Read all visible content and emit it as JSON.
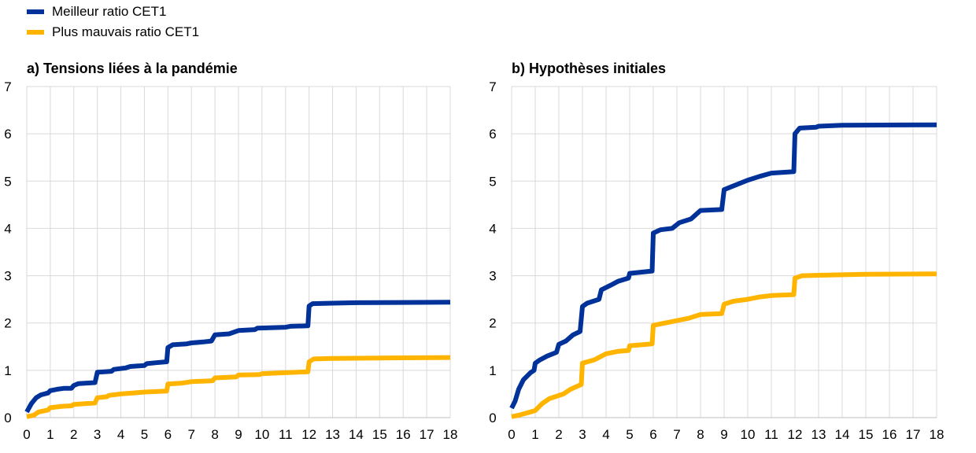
{
  "legend": {
    "items": [
      {
        "label": "Meilleur ratio CET1",
        "color": "#003299"
      },
      {
        "label": "Plus mauvais ratio CET1",
        "color": "#FFB400"
      }
    ]
  },
  "chart_data": [
    {
      "type": "line",
      "title": "a) Tensions liées à la pandémie",
      "xlabel": "",
      "ylabel": "",
      "xlim": [
        0,
        18
      ],
      "ylim": [
        0,
        7
      ],
      "xticks": [
        0,
        1,
        2,
        3,
        4,
        5,
        6,
        7,
        8,
        9,
        10,
        11,
        12,
        13,
        14,
        15,
        16,
        17,
        18
      ],
      "yticks": [
        0,
        1,
        2,
        3,
        4,
        5,
        6,
        7
      ],
      "grid": true,
      "series": [
        {
          "name": "Meilleur ratio CET1",
          "color": "#003299",
          "points": [
            [
              0,
              0.12
            ],
            [
              0.2,
              0.3
            ],
            [
              0.4,
              0.42
            ],
            [
              0.6,
              0.48
            ],
            [
              0.9,
              0.52
            ],
            [
              1,
              0.57
            ],
            [
              1.3,
              0.6
            ],
            [
              1.6,
              0.62
            ],
            [
              1.9,
              0.62
            ],
            [
              2,
              0.68
            ],
            [
              2.2,
              0.72
            ],
            [
              2.9,
              0.74
            ],
            [
              3,
              0.96
            ],
            [
              3.6,
              0.98
            ],
            [
              3.7,
              1.02
            ],
            [
              4.2,
              1.05
            ],
            [
              4.4,
              1.08
            ],
            [
              5,
              1.1
            ],
            [
              5.1,
              1.14
            ],
            [
              5.5,
              1.16
            ],
            [
              5.95,
              1.18
            ],
            [
              6,
              1.48
            ],
            [
              6.2,
              1.54
            ],
            [
              6.8,
              1.56
            ],
            [
              7,
              1.58
            ],
            [
              7.5,
              1.6
            ],
            [
              7.85,
              1.62
            ],
            [
              8,
              1.75
            ],
            [
              8.6,
              1.77
            ],
            [
              9,
              1.84
            ],
            [
              9.7,
              1.86
            ],
            [
              9.8,
              1.89
            ],
            [
              11,
              1.91
            ],
            [
              11.2,
              1.93
            ],
            [
              11.95,
              1.94
            ],
            [
              12,
              2.36
            ],
            [
              12.15,
              2.41
            ],
            [
              13,
              2.42
            ],
            [
              14,
              2.43
            ],
            [
              18,
              2.44
            ]
          ]
        },
        {
          "name": "Plus mauvais ratio CET1",
          "color": "#FFB400",
          "points": [
            [
              0,
              0.02
            ],
            [
              0.3,
              0.05
            ],
            [
              0.5,
              0.12
            ],
            [
              0.9,
              0.16
            ],
            [
              1,
              0.21
            ],
            [
              1.5,
              0.24
            ],
            [
              1.9,
              0.25
            ],
            [
              2,
              0.28
            ],
            [
              2.9,
              0.31
            ],
            [
              3,
              0.42
            ],
            [
              3.4,
              0.44
            ],
            [
              3.5,
              0.47
            ],
            [
              4,
              0.5
            ],
            [
              4.5,
              0.52
            ],
            [
              5,
              0.54
            ],
            [
              5.95,
              0.56
            ],
            [
              6,
              0.71
            ],
            [
              6.6,
              0.73
            ],
            [
              7,
              0.76
            ],
            [
              7.9,
              0.78
            ],
            [
              8,
              0.84
            ],
            [
              8.9,
              0.86
            ],
            [
              9,
              0.9
            ],
            [
              9.9,
              0.91
            ],
            [
              10,
              0.93
            ],
            [
              11,
              0.95
            ],
            [
              11.95,
              0.97
            ],
            [
              12,
              1.18
            ],
            [
              12.2,
              1.24
            ],
            [
              13,
              1.25
            ],
            [
              15,
              1.26
            ],
            [
              18,
              1.27
            ]
          ]
        }
      ]
    },
    {
      "type": "line",
      "title": "b) Hypothèses initiales",
      "xlabel": "",
      "ylabel": "",
      "xlim": [
        0,
        18
      ],
      "ylim": [
        0,
        7
      ],
      "xticks": [
        0,
        1,
        2,
        3,
        4,
        5,
        6,
        7,
        8,
        9,
        10,
        11,
        12,
        13,
        14,
        15,
        16,
        17,
        18
      ],
      "yticks": [
        0,
        1,
        2,
        3,
        4,
        5,
        6,
        7
      ],
      "grid": true,
      "series": [
        {
          "name": "Meilleur ratio CET1",
          "color": "#003299",
          "points": [
            [
              0,
              0.2
            ],
            [
              0.15,
              0.35
            ],
            [
              0.3,
              0.6
            ],
            [
              0.5,
              0.8
            ],
            [
              0.6,
              0.85
            ],
            [
              0.7,
              0.9
            ],
            [
              0.8,
              0.95
            ],
            [
              0.95,
              1.0
            ],
            [
              1,
              1.15
            ],
            [
              1.2,
              1.22
            ],
            [
              1.5,
              1.3
            ],
            [
              1.9,
              1.38
            ],
            [
              2,
              1.55
            ],
            [
              2.3,
              1.62
            ],
            [
              2.6,
              1.75
            ],
            [
              2.9,
              1.82
            ],
            [
              3,
              2.35
            ],
            [
              3.2,
              2.42
            ],
            [
              3.7,
              2.5
            ],
            [
              3.8,
              2.7
            ],
            [
              4.2,
              2.8
            ],
            [
              4.5,
              2.88
            ],
            [
              4.95,
              2.95
            ],
            [
              5,
              3.05
            ],
            [
              5.95,
              3.1
            ],
            [
              6,
              3.9
            ],
            [
              6.3,
              3.97
            ],
            [
              6.8,
              4.0
            ],
            [
              7.1,
              4.12
            ],
            [
              7.6,
              4.2
            ],
            [
              8,
              4.38
            ],
            [
              8.9,
              4.4
            ],
            [
              9,
              4.82
            ],
            [
              9.4,
              4.9
            ],
            [
              10,
              5.02
            ],
            [
              10.5,
              5.1
            ],
            [
              11,
              5.17
            ],
            [
              11.95,
              5.2
            ],
            [
              12,
              6.0
            ],
            [
              12.2,
              6.12
            ],
            [
              12.9,
              6.14
            ],
            [
              13,
              6.16
            ],
            [
              14,
              6.18
            ],
            [
              18,
              6.19
            ]
          ]
        },
        {
          "name": "Plus mauvais ratio CET1",
          "color": "#FFB400",
          "points": [
            [
              0,
              0.02
            ],
            [
              0.3,
              0.05
            ],
            [
              0.8,
              0.12
            ],
            [
              1,
              0.15
            ],
            [
              1.3,
              0.3
            ],
            [
              1.6,
              0.4
            ],
            [
              1.9,
              0.45
            ],
            [
              2.2,
              0.5
            ],
            [
              2.5,
              0.6
            ],
            [
              2.95,
              0.7
            ],
            [
              3,
              1.15
            ],
            [
              3.5,
              1.22
            ],
            [
              4,
              1.35
            ],
            [
              4.5,
              1.4
            ],
            [
              4.95,
              1.42
            ],
            [
              5,
              1.52
            ],
            [
              5.95,
              1.56
            ],
            [
              6,
              1.95
            ],
            [
              6.5,
              2.0
            ],
            [
              7,
              2.05
            ],
            [
              7.5,
              2.1
            ],
            [
              8,
              2.18
            ],
            [
              8.9,
              2.2
            ],
            [
              9,
              2.4
            ],
            [
              9.4,
              2.46
            ],
            [
              10,
              2.5
            ],
            [
              10.5,
              2.55
            ],
            [
              11,
              2.58
            ],
            [
              11.95,
              2.6
            ],
            [
              12,
              2.95
            ],
            [
              12.3,
              3.0
            ],
            [
              13,
              3.01
            ],
            [
              14,
              3.02
            ],
            [
              15,
              3.03
            ],
            [
              18,
              3.04
            ]
          ]
        }
      ]
    }
  ]
}
